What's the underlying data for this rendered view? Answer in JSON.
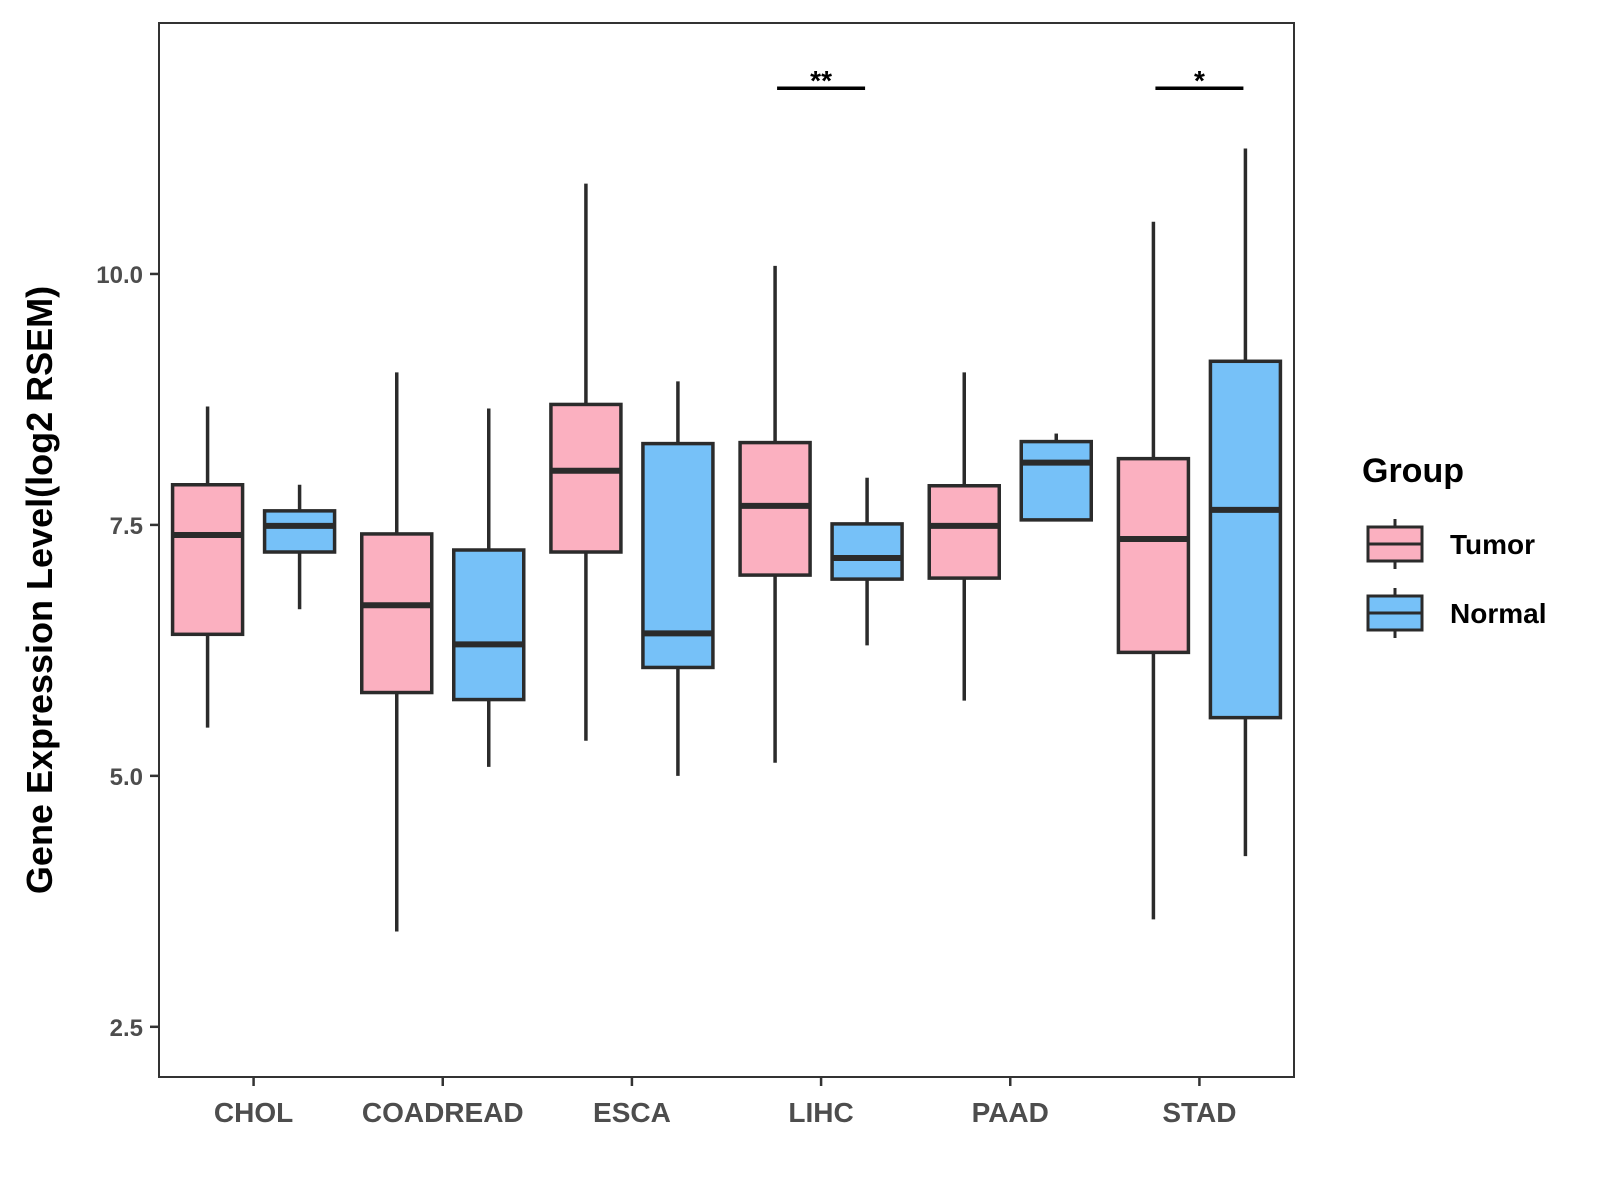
{
  "chart_data": {
    "type": "boxplot",
    "title": "",
    "xlabel": "",
    "ylabel": "Gene Expression Level(log2 RSEM)",
    "ylim": [
      2.0,
      12.5
    ],
    "yticks": [
      2.5,
      5.0,
      7.5,
      10.0
    ],
    "ytick_labels": [
      "2.5",
      "5.0",
      "7.5",
      "10.0"
    ],
    "grid": false,
    "categories": [
      "CHOL",
      "COADREAD",
      "ESCA",
      "LIHC",
      "PAAD",
      "STAD"
    ],
    "legend": {
      "title": "Group",
      "position": "right",
      "entries": [
        {
          "label": "Tumor",
          "color": "#FBB0C0"
        },
        {
          "label": "Normal",
          "color": "#76C1F8"
        }
      ]
    },
    "series": [
      {
        "name": "Tumor",
        "color": "#FBB0C0",
        "boxes": [
          {
            "category": "CHOL",
            "min": 5.48,
            "q1": 6.41,
            "median": 7.4,
            "q3": 7.9,
            "max": 8.68
          },
          {
            "category": "COADREAD",
            "min": 3.45,
            "q1": 5.83,
            "median": 6.7,
            "q3": 7.41,
            "max": 9.02
          },
          {
            "category": "ESCA",
            "min": 5.35,
            "q1": 7.23,
            "median": 8.04,
            "q3": 8.7,
            "max": 10.9
          },
          {
            "category": "LIHC",
            "min": 5.13,
            "q1": 7.0,
            "median": 7.69,
            "q3": 8.32,
            "max": 10.08
          },
          {
            "category": "PAAD",
            "min": 5.75,
            "q1": 6.97,
            "median": 7.49,
            "q3": 7.89,
            "max": 9.02
          },
          {
            "category": "STAD",
            "min": 3.57,
            "q1": 6.23,
            "median": 7.36,
            "q3": 8.16,
            "max": 10.52
          }
        ]
      },
      {
        "name": "Normal",
        "color": "#76C1F8",
        "boxes": [
          {
            "category": "CHOL",
            "min": 6.66,
            "q1": 7.23,
            "median": 7.49,
            "q3": 7.64,
            "max": 7.9
          },
          {
            "category": "COADREAD",
            "min": 5.09,
            "q1": 5.76,
            "median": 6.31,
            "q3": 7.25,
            "max": 8.66
          },
          {
            "category": "ESCA",
            "min": 5.0,
            "q1": 6.08,
            "median": 6.42,
            "q3": 8.31,
            "max": 8.93
          },
          {
            "category": "LIHC",
            "min": 6.3,
            "q1": 6.96,
            "median": 7.17,
            "q3": 7.51,
            "max": 7.97
          },
          {
            "category": "PAAD",
            "min": 7.55,
            "q1": 7.55,
            "median": 8.12,
            "q3": 8.33,
            "max": 8.41
          },
          {
            "category": "STAD",
            "min": 4.2,
            "q1": 5.58,
            "median": 7.65,
            "q3": 9.13,
            "max": 11.25
          }
        ]
      }
    ],
    "significance": [
      {
        "category": "LIHC",
        "label": "**",
        "y": 11.85
      },
      {
        "category": "STAD",
        "label": "*",
        "y": 11.85
      }
    ]
  }
}
